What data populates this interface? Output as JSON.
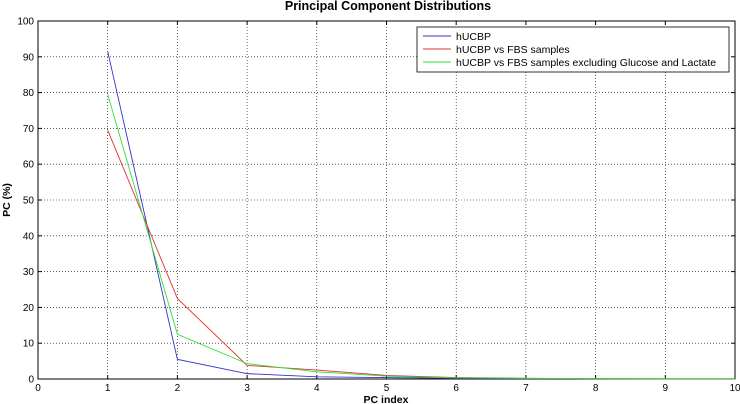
{
  "chart_data": {
    "type": "line",
    "title": "Principal Component Distributions",
    "xlabel": "PC index",
    "ylabel": "PC (%)",
    "xlim": [
      0,
      10
    ],
    "ylim": [
      0,
      100
    ],
    "xticks": [
      "0",
      "1",
      "2",
      "3",
      "4",
      "5",
      "6",
      "7",
      "8",
      "9",
      "10"
    ],
    "yticks": [
      "0",
      "10",
      "20",
      "30",
      "40",
      "50",
      "60",
      "70",
      "80",
      "90",
      "100"
    ],
    "grid": true,
    "legend_position": "top-right",
    "x": [
      1,
      2,
      3,
      4,
      5,
      6,
      7,
      8,
      9,
      10
    ],
    "series": [
      {
        "name": "hUCBP",
        "color": "#3333cc",
        "values": [
          91.5,
          5.5,
          1.5,
          0.6,
          0.4,
          0.2,
          0.1,
          0.1,
          0.05,
          0.05
        ]
      },
      {
        "name": "hUCBP vs FBS samples",
        "color": "#dd3333",
        "values": [
          69.5,
          22.5,
          3.8,
          2.5,
          1.0,
          0.4,
          0.2,
          0.1,
          0.05,
          0.05
        ]
      },
      {
        "name": "hUCBP vs FBS samples excluding Glucose and Lactate",
        "color": "#33dd33",
        "values": [
          79.5,
          12.5,
          4.3,
          2.0,
          0.8,
          0.3,
          0.2,
          0.1,
          0.05,
          0.05
        ]
      }
    ]
  }
}
